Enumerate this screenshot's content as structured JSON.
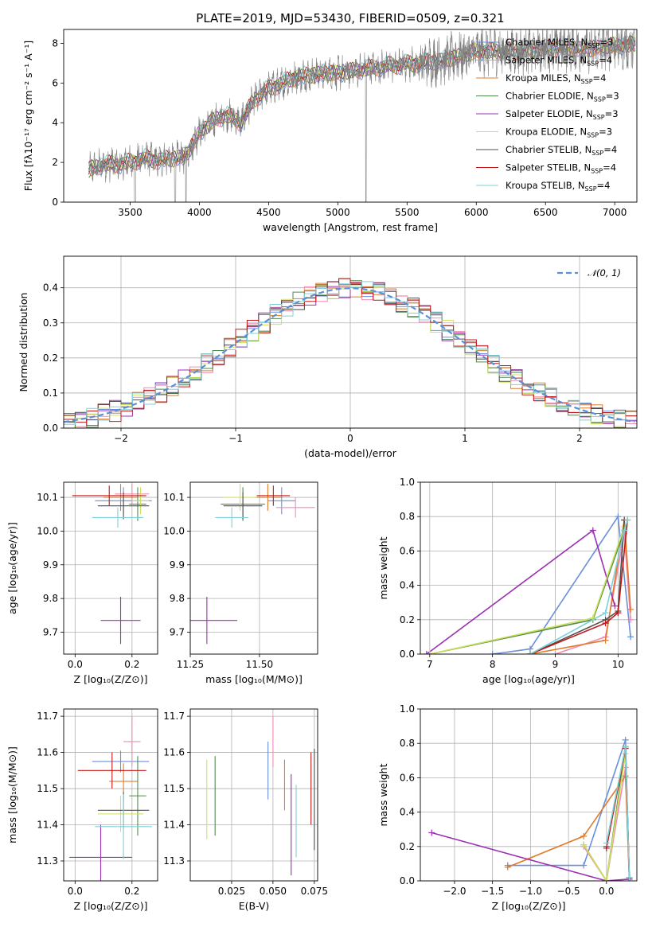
{
  "figure": {
    "title": "PLATE=2019, MJD=53430, FIBERID=0509, z=0.321"
  },
  "colors": {
    "Chabrier MILES": "#6a8fdc",
    "Salpeter MILES": "#f08cb4",
    "Kroupa MILES": "#e07b2a",
    "Chabrier ELODIE": "#4f8a4f",
    "Salpeter ELODIE": "#9b30b0",
    "Kroupa ELODIE": "#cfe05a",
    "Chabrier STELIB": "#505050",
    "Salpeter STELIB": "#c01818",
    "Kroupa STELIB": "#7fd0d8",
    "data": "#808080",
    "gaussian": "#5b8fd6"
  },
  "chart_data": [
    {
      "type": "line",
      "id": "spectrum",
      "title": "PLATE=2019, MJD=53430, FIBERID=0509, z=0.321",
      "xlabel": "wavelength [Angstrom, rest frame]",
      "ylabel": "Flux [fλ10⁻¹⁷ erg cm⁻² s⁻¹ A⁻¹]",
      "xlim": [
        3020,
        7160
      ],
      "ylim": [
        0,
        8.7
      ],
      "xticks": [
        3500,
        4000,
        4500,
        5000,
        5500,
        6000,
        6500,
        7000
      ],
      "yticks": [
        0,
        2,
        4,
        6,
        8
      ],
      "legend_position": "top-right",
      "legend": [
        {
          "label": "Chabrier MILES, N",
          "sub": "SSP",
          "tail": "=3"
        },
        {
          "label": "Salpeter MILES, N",
          "sub": "SSP",
          "tail": "=4"
        },
        {
          "label": "Kroupa MILES, N",
          "sub": "SSP",
          "tail": "=4"
        },
        {
          "label": "Chabrier ELODIE, N",
          "sub": "SSP",
          "tail": "=3"
        },
        {
          "label": "Salpeter ELODIE, N",
          "sub": "SSP",
          "tail": "=3"
        },
        {
          "label": "Kroupa ELODIE, N",
          "sub": "SSP",
          "tail": "=3"
        },
        {
          "label": "Chabrier STELIB, N",
          "sub": "SSP",
          "tail": "=4"
        },
        {
          "label": "Salpeter STELIB, N",
          "sub": "SSP",
          "tail": "=4"
        },
        {
          "label": "Kroupa STELIB, N",
          "sub": "SSP",
          "tail": "=4"
        }
      ],
      "continuum": {
        "x": [
          3200,
          3300,
          3400,
          3500,
          3600,
          3700,
          3800,
          3900,
          4000,
          4100,
          4200,
          4300,
          4400,
          4500,
          4600,
          4700,
          4800,
          4900,
          5000,
          5200,
          5400,
          5600,
          5800,
          6000,
          6200,
          6400,
          6600,
          6800,
          7000
        ],
        "y": [
          1.6,
          1.9,
          1.9,
          2.0,
          2.2,
          2.1,
          2.2,
          2.3,
          3.5,
          4.1,
          4.4,
          4.0,
          5.2,
          5.7,
          6.0,
          6.3,
          6.4,
          6.5,
          6.5,
          6.7,
          6.9,
          7.0,
          7.2,
          7.6,
          7.6,
          7.6,
          7.8,
          7.7,
          7.9
        ]
      }
    },
    {
      "type": "bar",
      "id": "residuals",
      "xlabel": "(data-model)/error",
      "ylabel": "Normed distribution",
      "xlim": [
        -2.5,
        2.5
      ],
      "ylim": [
        0,
        0.49
      ],
      "xticks": [
        -2,
        -1,
        0,
        1,
        2
      ],
      "yticks": [
        0.0,
        0.1,
        0.2,
        0.3,
        0.4
      ],
      "bin_width": 0.1,
      "legend_label": "𝒩(0, 1)",
      "legend_position": "top-right",
      "gaussian": {
        "mean": 0,
        "sigma": 1
      }
    },
    {
      "type": "scatter",
      "id": "z-age",
      "xlabel": "Z [log₁₀(Z/Z⊙)]",
      "ylabel": "age  [log₁₀(age/yr)]",
      "xlim": [
        -0.04,
        0.29
      ],
      "ylim": [
        9.635,
        10.145
      ],
      "xticks": [
        0.0,
        0.2
      ],
      "yticks": [
        9.7,
        9.8,
        9.9,
        10.0,
        10.1
      ],
      "points": [
        {
          "model": "Chabrier MILES",
          "x": 0.17,
          "y": 10.09,
          "xerr": 0.1,
          "yerr": 0.04
        },
        {
          "model": "Salpeter MILES",
          "x": 0.2,
          "y": 10.11,
          "xerr": 0.06,
          "yerr": 0.03
        },
        {
          "model": "Kroupa MILES",
          "x": 0.16,
          "y": 10.1,
          "xerr": 0.06,
          "yerr": 0.04
        },
        {
          "model": "Chabrier ELODIE",
          "x": 0.22,
          "y": 10.08,
          "xerr": 0.03,
          "yerr": 0.05
        },
        {
          "model": "Salpeter ELODIE",
          "x": 0.16,
          "y": 9.735,
          "xerr": 0.07,
          "yerr": 0.07
        },
        {
          "model": "Kroupa ELODIE",
          "x": 0.23,
          "y": 10.09,
          "xerr": 0.03,
          "yerr": 0.04
        },
        {
          "model": "Chabrier STELIB",
          "x": 0.17,
          "y": 10.075,
          "xerr": 0.09,
          "yerr": 0.04
        },
        {
          "model": "Salpeter STELIB",
          "x": 0.12,
          "y": 10.105,
          "xerr": 0.13,
          "yerr": 0.03
        },
        {
          "model": "Kroupa STELIB",
          "x": 0.15,
          "y": 10.04,
          "xerr": 0.09,
          "yerr": 0.03
        }
      ]
    },
    {
      "type": "scatter",
      "id": "mass-age",
      "xlabel": "mass [log₁₀(M/M⊙)]",
      "ylabel": "",
      "xlim": [
        11.25,
        11.71
      ],
      "ylim": [
        9.635,
        10.145
      ],
      "xticks": [
        11.25,
        11.5
      ],
      "yticks": [
        9.7,
        9.8,
        9.9,
        10.0,
        10.1
      ],
      "points": [
        {
          "model": "Chabrier MILES",
          "x": 11.58,
          "y": 10.09,
          "xerr": 0.05,
          "yerr": 0.04
        },
        {
          "model": "Salpeter MILES",
          "x": 11.63,
          "y": 10.07,
          "xerr": 0.07,
          "yerr": 0.03
        },
        {
          "model": "Kroupa MILES",
          "x": 11.53,
          "y": 10.1,
          "xerr": 0.05,
          "yerr": 0.04
        },
        {
          "model": "Chabrier ELODIE",
          "x": 11.44,
          "y": 10.08,
          "xerr": 0.08,
          "yerr": 0.05
        },
        {
          "model": "Salpeter ELODIE",
          "x": 11.31,
          "y": 9.735,
          "xerr": 0.11,
          "yerr": 0.07
        },
        {
          "model": "Kroupa ELODIE",
          "x": 11.43,
          "y": 10.1,
          "xerr": 0.06,
          "yerr": 0.04
        },
        {
          "model": "Chabrier STELIB",
          "x": 11.44,
          "y": 10.075,
          "xerr": 0.07,
          "yerr": 0.04
        },
        {
          "model": "Salpeter STELIB",
          "x": 11.55,
          "y": 10.105,
          "xerr": 0.06,
          "yerr": 0.03
        },
        {
          "model": "Kroupa STELIB",
          "x": 11.4,
          "y": 10.04,
          "xerr": 0.06,
          "yerr": 0.03
        }
      ]
    },
    {
      "type": "line",
      "id": "age-massweight",
      "xlabel": "age  [log₁₀(age/yr)]",
      "ylabel": "mass weight",
      "xlim": [
        6.85,
        10.3
      ],
      "ylim": [
        0,
        1.0
      ],
      "xticks": [
        7,
        8,
        9,
        10
      ],
      "yticks": [
        0.0,
        0.2,
        0.4,
        0.6,
        0.8,
        1.0
      ],
      "series": [
        {
          "model": "Chabrier MILES",
          "x": [
            8.0,
            8.6,
            10.0,
            10.2
          ],
          "y": [
            0.0,
            0.03,
            0.8,
            0.1
          ]
        },
        {
          "model": "Salpeter MILES",
          "x": [
            9.0,
            9.8,
            10.1,
            10.2
          ],
          "y": [
            0.0,
            0.1,
            0.7,
            0.2
          ]
        },
        {
          "model": "Kroupa MILES",
          "x": [
            8.6,
            9.8,
            10.1,
            10.2
          ],
          "y": [
            0.0,
            0.08,
            0.78,
            0.26
          ]
        },
        {
          "model": "Chabrier ELODIE",
          "x": [
            7.0,
            9.6,
            10.1
          ],
          "y": [
            0.0,
            0.2,
            0.72
          ]
        },
        {
          "model": "Salpeter ELODIE",
          "x": [
            6.95,
            9.6,
            9.95
          ],
          "y": [
            0.0,
            0.72,
            0.28
          ]
        },
        {
          "model": "Kroupa ELODIE",
          "x": [
            7.0,
            9.6,
            10.1
          ],
          "y": [
            0.0,
            0.21,
            0.74
          ]
        },
        {
          "model": "Chabrier STELIB",
          "x": [
            8.6,
            9.8,
            10.0,
            10.1
          ],
          "y": [
            0.0,
            0.2,
            0.25,
            0.78
          ]
        },
        {
          "model": "Salpeter STELIB",
          "x": [
            8.6,
            9.8,
            10.0,
            10.15
          ],
          "y": [
            0.0,
            0.18,
            0.24,
            0.78
          ]
        },
        {
          "model": "Kroupa STELIB",
          "x": [
            8.6,
            9.8,
            10.1,
            10.15
          ],
          "y": [
            0.0,
            0.24,
            0.72,
            0.78
          ]
        }
      ]
    },
    {
      "type": "scatter",
      "id": "z-mass",
      "xlabel": "Z [log₁₀(Z/Z⊙)]",
      "ylabel": "mass [log₁₀(M/M⊙)]",
      "xlim": [
        -0.04,
        0.29
      ],
      "ylim": [
        11.245,
        11.72
      ],
      "xticks": [
        0.0,
        0.2
      ],
      "yticks": [
        11.3,
        11.4,
        11.5,
        11.6,
        11.7
      ],
      "points": [
        {
          "model": "Chabrier MILES",
          "x": 0.16,
          "y": 11.575,
          "xerr": 0.1,
          "yerr": 0.03
        },
        {
          "model": "Salpeter MILES",
          "x": 0.2,
          "y": 11.63,
          "xerr": 0.03,
          "yerr": 0.07
        },
        {
          "model": "Kroupa MILES",
          "x": 0.17,
          "y": 11.52,
          "xerr": 0.05,
          "yerr": 0.05
        },
        {
          "model": "Chabrier ELODIE",
          "x": 0.22,
          "y": 11.48,
          "xerr": 0.03,
          "yerr": 0.11
        },
        {
          "model": "Salpeter ELODIE",
          "x": 0.09,
          "y": 11.31,
          "xerr": 0.11,
          "yerr": 0.09
        },
        {
          "model": "Kroupa ELODIE",
          "x": 0.16,
          "y": 11.43,
          "xerr": 0.08,
          "yerr": 0.05
        },
        {
          "model": "Chabrier STELIB",
          "x": 0.17,
          "y": 11.44,
          "xerr": 0.09,
          "yerr": 0.05
        },
        {
          "model": "Salpeter STELIB",
          "x": 0.13,
          "y": 11.55,
          "xerr": 0.12,
          "yerr": 0.05
        },
        {
          "model": "Kroupa STELIB",
          "x": 0.17,
          "y": 11.395,
          "xerr": 0.1,
          "yerr": 0.09
        }
      ]
    },
    {
      "type": "scatter",
      "id": "ebv-mass",
      "xlabel": "E(B-V)",
      "ylabel": "",
      "xlim": [
        0.0,
        0.077
      ],
      "ylim": [
        11.245,
        11.72
      ],
      "xticks": [
        0.025,
        0.05,
        0.075
      ],
      "yticks": [
        11.3,
        11.4,
        11.5,
        11.6,
        11.7
      ],
      "points": [
        {
          "model": "Chabrier MILES",
          "x": 0.047,
          "y": 11.55,
          "xerr": 0,
          "yerr": 0.08
        },
        {
          "model": "Salpeter MILES",
          "x": 0.05,
          "y": 11.63,
          "xerr": 0,
          "yerr": 0.07
        },
        {
          "model": "Kroupa MILES",
          "x": 0.057,
          "y": 11.51,
          "xerr": 0,
          "yerr": 0.07
        },
        {
          "model": "Chabrier ELODIE",
          "x": 0.015,
          "y": 11.48,
          "xerr": 0,
          "yerr": 0.11
        },
        {
          "model": "Salpeter ELODIE",
          "x": 0.061,
          "y": 11.4,
          "xerr": 0,
          "yerr": 0.14
        },
        {
          "model": "Kroupa ELODIE",
          "x": 0.01,
          "y": 11.47,
          "xerr": 0,
          "yerr": 0.11
        },
        {
          "model": "Chabrier STELIB",
          "x": 0.075,
          "y": 11.47,
          "xerr": 0,
          "yerr": 0.14
        },
        {
          "model": "Salpeter STELIB",
          "x": 0.073,
          "y": 11.5,
          "xerr": 0,
          "yerr": 0.1
        },
        {
          "model": "Kroupa STELIB",
          "x": 0.064,
          "y": 11.41,
          "xerr": 0,
          "yerr": 0.1
        }
      ]
    },
    {
      "type": "line",
      "id": "z-massweight",
      "xlabel": "Z [log₁₀(Z/Z⊙)]",
      "ylabel": "mass weight",
      "xlim": [
        -2.45,
        0.4
      ],
      "ylim": [
        0,
        1.0
      ],
      "xticks": [
        -2.0,
        -1.5,
        -1.0,
        -0.5,
        0.0
      ],
      "yticks": [
        0.0,
        0.2,
        0.4,
        0.6,
        0.8,
        1.0
      ],
      "series": [
        {
          "model": "Chabrier MILES",
          "x": [
            -1.3,
            -0.3,
            0.25,
            0.3
          ],
          "y": [
            0.09,
            0.09,
            0.82,
            0.02
          ]
        },
        {
          "model": "Salpeter MILES",
          "x": [
            -0.3,
            0.0,
            0.25,
            0.3
          ],
          "y": [
            0.2,
            0.0,
            0.66,
            0.01
          ]
        },
        {
          "model": "Kroupa MILES",
          "x": [
            -1.3,
            -0.3,
            0.25,
            0.3
          ],
          "y": [
            0.08,
            0.26,
            0.61,
            0.01
          ]
        },
        {
          "model": "Chabrier ELODIE",
          "x": [
            -0.3,
            0.0,
            0.25
          ],
          "y": [
            0.21,
            0.0,
            0.78
          ]
        },
        {
          "model": "Salpeter ELODIE",
          "x": [
            -2.3,
            0.0,
            0.3
          ],
          "y": [
            0.28,
            0.0,
            0.01
          ]
        },
        {
          "model": "Kroupa ELODIE",
          "x": [
            -0.3,
            0.0,
            0.25
          ],
          "y": [
            0.21,
            0.0,
            0.74
          ]
        },
        {
          "model": "Chabrier STELIB",
          "x": [
            0.0,
            0.25,
            0.3
          ],
          "y": [
            0.2,
            0.78,
            0.02
          ]
        },
        {
          "model": "Salpeter STELIB",
          "x": [
            0.0,
            0.25,
            0.3
          ],
          "y": [
            0.19,
            0.77,
            0.02
          ]
        },
        {
          "model": "Kroupa STELIB",
          "x": [
            0.0,
            0.25,
            0.3
          ],
          "y": [
            0.22,
            0.78,
            0.02
          ]
        }
      ]
    }
  ]
}
